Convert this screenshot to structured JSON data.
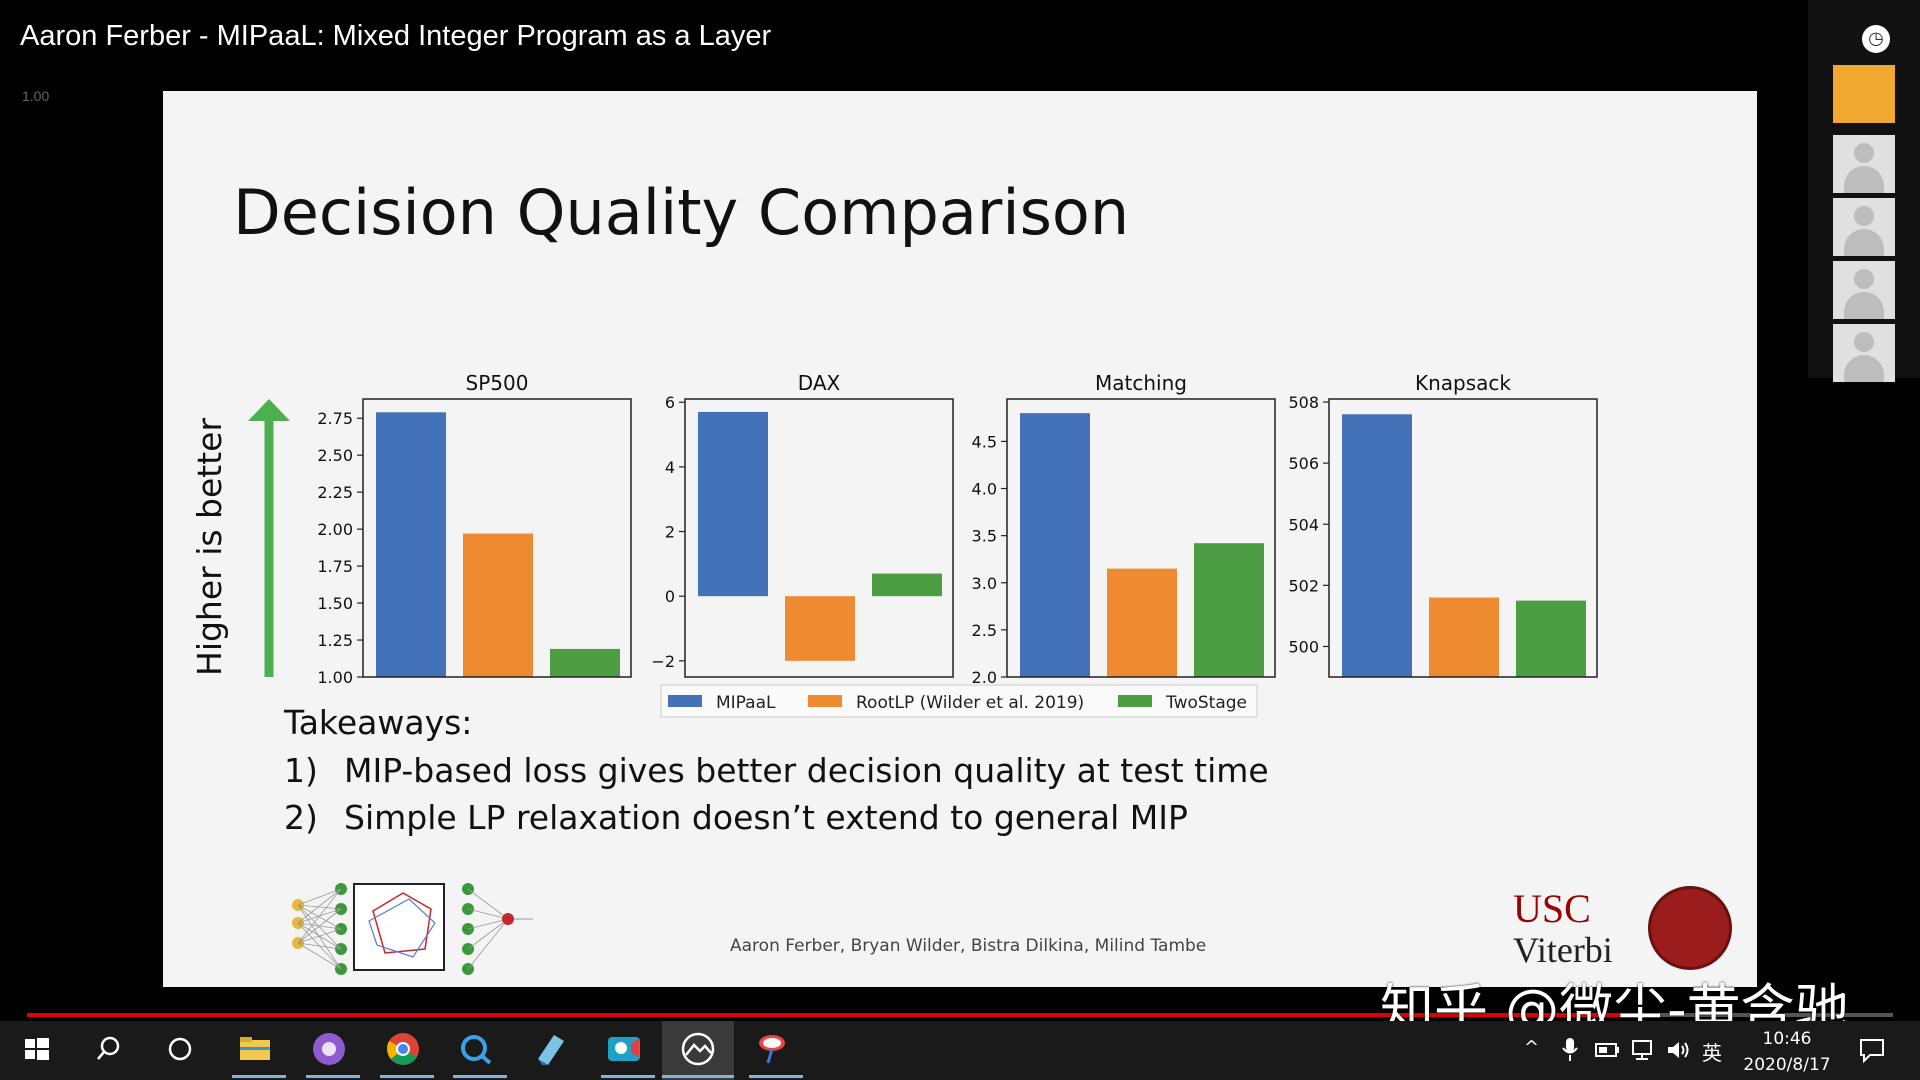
{
  "window": {
    "title": "Aaron Ferber - MIPaaL: Mixed Integer Program as a Layer",
    "speed": "1.00"
  },
  "slide": {
    "title": "Decision Quality Comparison",
    "higher_label": "Higher is better",
    "takeaways_title": "Takeaways:",
    "takeaways": [
      {
        "num": "1)",
        "text": "MIP-based loss gives better decision quality at test time"
      },
      {
        "num": "2)",
        "text": "Simple LP relaxation doesn’t extend to general MIP"
      }
    ],
    "authors": "Aaron Ferber, Bryan Wilder, Bistra Dilkina, Milind Tambe",
    "usc_logo": "USC",
    "viterbi_logo": "Viterbi"
  },
  "chart_data": [
    {
      "type": "bar",
      "title": "SP500",
      "categories": [
        "MIPaaL",
        "RootLP (Wilder et al. 2019)",
        "TwoStage"
      ],
      "values": [
        2.79,
        1.97,
        1.19
      ],
      "ylim": [
        1.0,
        2.88
      ],
      "yticks": [
        "1.00",
        "1.25",
        "1.50",
        "1.75",
        "2.00",
        "2.25",
        "2.50",
        "2.75"
      ],
      "ytick_values": [
        1.0,
        1.25,
        1.5,
        1.75,
        2.0,
        2.25,
        2.5,
        2.75
      ]
    },
    {
      "type": "bar",
      "title": "DAX",
      "categories": [
        "MIPaaL",
        "RootLP (Wilder et al. 2019)",
        "TwoStage"
      ],
      "values": [
        5.7,
        -2.0,
        0.7
      ],
      "ylim": [
        -2.5,
        6.1
      ],
      "yticks": [
        "−2",
        "0",
        "2",
        "4",
        "6"
      ],
      "ytick_values": [
        -2,
        0,
        2,
        4,
        6
      ]
    },
    {
      "type": "bar",
      "title": "Matching",
      "categories": [
        "MIPaaL",
        "RootLP (Wilder et al. 2019)",
        "TwoStage"
      ],
      "values": [
        4.8,
        3.15,
        3.42
      ],
      "ylim": [
        2.0,
        4.95
      ],
      "yticks": [
        "2.0",
        "2.5",
        "3.0",
        "3.5",
        "4.0",
        "4.5"
      ],
      "ytick_values": [
        2.0,
        2.5,
        3.0,
        3.5,
        4.0,
        4.5
      ]
    },
    {
      "type": "bar",
      "title": "Knapsack",
      "categories": [
        "MIPaaL",
        "RootLP (Wilder et al. 2019)",
        "TwoStage"
      ],
      "values": [
        507.6,
        501.6,
        501.5
      ],
      "ylim": [
        499.0,
        508.1
      ],
      "yticks": [
        "500",
        "502",
        "504",
        "506",
        "508"
      ],
      "ytick_values": [
        500,
        502,
        504,
        506,
        508
      ]
    }
  ],
  "legend": {
    "entries": [
      {
        "label": "MIPaaL",
        "color": "#4472b8"
      },
      {
        "label": "RootLP (Wilder et al. 2019)",
        "color": "#ee8a30"
      },
      {
        "label": "TwoStage",
        "color": "#4d9d42"
      }
    ]
  },
  "colors": {
    "mipaal": "#4472b8",
    "rootlp": "#ee8a30",
    "twostage": "#4d9d42",
    "arrow": "#4caf50",
    "progress": "#e00000"
  },
  "video": {
    "progress": 0.86
  },
  "watermark": "知乎 @微尘-黄含驰",
  "taskbar": {
    "ime": "英",
    "time": "10:46",
    "date": "2020/8/17",
    "icons": [
      "windows-start-icon",
      "search-icon",
      "cortana-icon",
      "file-explorer-icon",
      "app-icon",
      "chrome-icon",
      "browser-icon",
      "notes-icon",
      "video-app-icon",
      "photos-icon",
      "tool-icon"
    ]
  }
}
